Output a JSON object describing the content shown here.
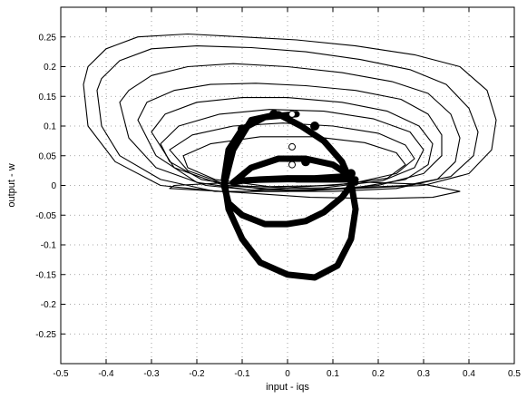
{
  "chart_data": {
    "type": "line",
    "title": "",
    "xlabel": "input - iqs",
    "ylabel": "output - w",
    "xlim": [
      -0.5,
      0.5
    ],
    "ylim": [
      -0.3,
      0.3
    ],
    "grid": true,
    "x_ticks": [
      -0.5,
      -0.4,
      -0.3,
      -0.2,
      -0.1,
      0,
      0.1,
      0.2,
      0.3,
      0.4,
      0.5
    ],
    "y_ticks": [
      0.25,
      0.2,
      0.15,
      0.1,
      0.05,
      0,
      -0.05,
      -0.1,
      -0.15,
      -0.2,
      -0.25
    ],
    "x_tick_labels": [
      "-0.5",
      "-0.4",
      "-0.3",
      "-0.2",
      "-0.1",
      "0",
      "0.1",
      "0.2",
      "0.3",
      "0.4",
      "0.5"
    ],
    "y_tick_labels": [
      "0.25",
      "0.2",
      "0.15",
      "0.1",
      "0.05",
      "0",
      "-0.05",
      "-0.1",
      "-0.15",
      "-0.2",
      "-0.25"
    ],
    "line_color": "#000000",
    "series": [
      {
        "style": "thin",
        "x": [
          -0.45,
          -0.44,
          -0.4,
          -0.33,
          -0.22,
          -0.1,
          0.02,
          0.15,
          0.28,
          0.38,
          0.44,
          0.46,
          0.45,
          0.4,
          0.3,
          0.15,
          0.0,
          -0.15,
          -0.28,
          -0.38,
          -0.44,
          -0.45
        ],
        "y": [
          0.17,
          0.2,
          0.23,
          0.25,
          0.255,
          0.25,
          0.245,
          0.235,
          0.22,
          0.2,
          0.16,
          0.11,
          0.06,
          0.02,
          0.0,
          -0.005,
          -0.01,
          -0.01,
          0.0,
          0.04,
          0.1,
          0.17
        ]
      },
      {
        "style": "thin",
        "x": [
          -0.42,
          -0.41,
          -0.37,
          -0.3,
          -0.2,
          -0.08,
          0.04,
          0.16,
          0.27,
          0.35,
          0.4,
          0.42,
          0.41,
          0.36,
          0.26,
          0.12,
          -0.02,
          -0.16,
          -0.28,
          -0.37,
          -0.41,
          -0.42
        ],
        "y": [
          0.16,
          0.18,
          0.21,
          0.23,
          0.235,
          0.232,
          0.225,
          0.212,
          0.195,
          0.17,
          0.13,
          0.09,
          0.05,
          0.015,
          0.0,
          -0.005,
          -0.01,
          -0.01,
          0.01,
          0.05,
          0.1,
          0.16
        ]
      },
      {
        "style": "thin",
        "x": [
          -0.37,
          -0.35,
          -0.3,
          -0.22,
          -0.12,
          0.0,
          0.12,
          0.23,
          0.31,
          0.36,
          0.38,
          0.37,
          0.33,
          0.24,
          0.1,
          -0.05,
          -0.18,
          -0.29,
          -0.35,
          -0.37
        ],
        "y": [
          0.14,
          0.16,
          0.185,
          0.2,
          0.205,
          0.2,
          0.19,
          0.175,
          0.155,
          0.12,
          0.08,
          0.04,
          0.01,
          -0.005,
          -0.01,
          -0.01,
          0.0,
          0.03,
          0.08,
          0.14
        ]
      },
      {
        "style": "thin",
        "x": [
          -0.33,
          -0.31,
          -0.25,
          -0.17,
          -0.07,
          0.04,
          0.15,
          0.25,
          0.31,
          0.34,
          0.34,
          0.3,
          0.2,
          0.06,
          -0.08,
          -0.2,
          -0.29,
          -0.33
        ],
        "y": [
          0.11,
          0.14,
          0.16,
          0.17,
          0.172,
          0.168,
          0.16,
          0.145,
          0.12,
          0.085,
          0.05,
          0.02,
          0.0,
          -0.008,
          -0.008,
          0.005,
          0.05,
          0.11
        ]
      },
      {
        "style": "thin",
        "x": [
          -0.3,
          -0.27,
          -0.2,
          -0.1,
          0.0,
          0.12,
          0.22,
          0.29,
          0.32,
          0.31,
          0.26,
          0.15,
          0.0,
          -0.14,
          -0.25,
          -0.3
        ],
        "y": [
          0.09,
          0.12,
          0.14,
          0.148,
          0.148,
          0.14,
          0.125,
          0.1,
          0.07,
          0.035,
          0.01,
          -0.004,
          -0.008,
          0.0,
          0.03,
          0.09
        ]
      },
      {
        "style": "thin",
        "x": [
          -0.28,
          -0.24,
          -0.15,
          -0.04,
          0.08,
          0.19,
          0.27,
          0.3,
          0.28,
          0.21,
          0.08,
          -0.06,
          -0.19,
          -0.26,
          -0.28
        ],
        "y": [
          0.07,
          0.1,
          0.12,
          0.128,
          0.125,
          0.112,
          0.09,
          0.06,
          0.03,
          0.008,
          -0.004,
          -0.006,
          0.01,
          0.04,
          0.07
        ]
      },
      {
        "style": "thin",
        "x": [
          -0.26,
          -0.21,
          -0.12,
          -0.01,
          0.1,
          0.2,
          0.26,
          0.28,
          0.24,
          0.14,
          0.0,
          -0.13,
          -0.22,
          -0.26
        ],
        "y": [
          0.06,
          0.085,
          0.1,
          0.105,
          0.1,
          0.088,
          0.068,
          0.045,
          0.02,
          0.003,
          -0.004,
          0.0,
          0.025,
          0.06
        ]
      },
      {
        "style": "thin",
        "x": [
          -0.23,
          -0.17,
          -0.06,
          0.06,
          0.17,
          0.24,
          0.26,
          0.22,
          0.1,
          -0.04,
          -0.16,
          -0.22,
          -0.23
        ],
        "y": [
          0.05,
          0.07,
          0.082,
          0.082,
          0.072,
          0.055,
          0.035,
          0.012,
          0.0,
          -0.002,
          0.01,
          0.03,
          0.05
        ]
      },
      {
        "style": "thin",
        "x": [
          -0.26,
          -0.1,
          0.05,
          0.2,
          0.32,
          0.38,
          0.3,
          0.15,
          0.0,
          -0.15,
          -0.25,
          -0.26
        ],
        "y": [
          -0.005,
          -0.012,
          -0.02,
          -0.022,
          -0.02,
          -0.01,
          0.002,
          0.006,
          0.006,
          0.004,
          0.0,
          -0.005
        ]
      },
      {
        "style": "thick",
        "x": [
          0.02,
          -0.05,
          -0.1,
          -0.13,
          -0.14,
          -0.13,
          -0.1,
          -0.06,
          0.0,
          0.06,
          0.11,
          0.14,
          0.15,
          0.14,
          0.12,
          0.08,
          0.03,
          -0.02,
          -0.08,
          -0.12,
          -0.14,
          -0.13,
          -0.1,
          -0.05,
          0.0,
          0.04,
          0.08,
          0.12,
          0.14,
          0.15,
          0.1,
          0.02
        ],
        "y": [
          0.12,
          0.115,
          0.095,
          0.06,
          0.01,
          -0.04,
          -0.09,
          -0.13,
          -0.15,
          -0.155,
          -0.135,
          -0.09,
          -0.04,
          0.005,
          0.04,
          0.075,
          0.1,
          0.12,
          0.11,
          0.06,
          0.0,
          -0.03,
          -0.05,
          -0.065,
          -0.065,
          -0.06,
          -0.045,
          -0.02,
          0.0,
          0.01,
          0.01,
          0.01
        ]
      },
      {
        "style": "thick",
        "x": [
          -0.12,
          -0.08,
          -0.02,
          0.04,
          0.1,
          0.14,
          0.15,
          0.12,
          0.06,
          0.0,
          -0.06,
          -0.1,
          -0.12
        ],
        "y": [
          0.005,
          0.03,
          0.045,
          0.045,
          0.035,
          0.015,
          0.005,
          0.015,
          0.012,
          0.012,
          0.01,
          0.008,
          0.005
        ]
      }
    ],
    "markers": {
      "open_circles": [
        [
          0.01,
          0.12
        ],
        [
          0.01,
          0.065
        ],
        [
          0.01,
          0.035
        ]
      ],
      "filled_dots": [
        [
          -0.1,
          0.095
        ],
        [
          -0.03,
          0.12
        ],
        [
          0.06,
          0.1
        ],
        [
          0.04,
          0.04
        ],
        [
          0.14,
          0.02
        ]
      ]
    }
  }
}
